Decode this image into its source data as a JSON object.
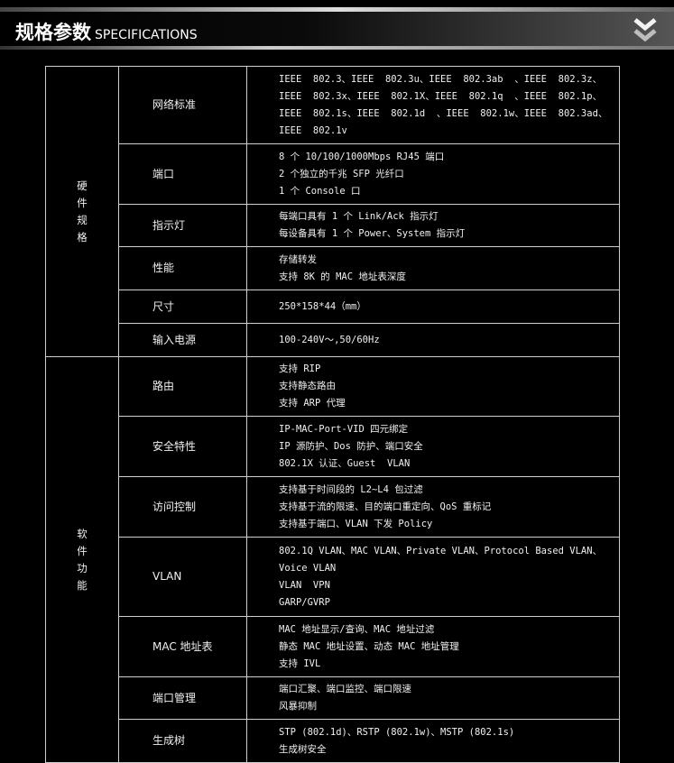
{
  "header": {
    "title_cn": "规格参数",
    "title_en": "SPECIFICATIONS",
    "icon": "double-chevron-down-icon"
  },
  "groups": [
    {
      "label": "硬\n件\n规\n格",
      "rows": [
        {
          "name": "网络标准",
          "lines": [
            "IEEE  802.3、IEEE  802.3u、IEEE  802.3ab  、IEEE  802.3z、",
            "IEEE  802.3x、IEEE  802.1X、IEEE  802.1q  、IEEE  802.1p、",
            "IEEE  802.1s、IEEE  802.1d  、IEEE  802.1w、IEEE  802.3ad、",
            "IEEE  802.1v"
          ]
        },
        {
          "name": "端口",
          "lines": [
            "8 个 10/100/1000Mbps RJ45 端口",
            "2 个独立的千兆 SFP 光纤口",
            "1 个 Console 口"
          ]
        },
        {
          "name": "指示灯",
          "lines": [
            "每端口具有 1 个 Link/Ack 指示灯",
            "每设备具有 1 个 Power、System 指示灯"
          ]
        },
        {
          "name": "性能",
          "lines": [
            "存储转发",
            "支持 8K 的 MAC 地址表深度"
          ]
        },
        {
          "name": "尺寸",
          "lines": [
            "250*158*44（mm）"
          ]
        },
        {
          "name": "输入电源",
          "lines": [
            "100-240V～,50/60Hz"
          ]
        }
      ]
    },
    {
      "label": "软\n件\n功\n能",
      "rows": [
        {
          "name": "路由",
          "lines": [
            "支持 RIP",
            "支持静态路由",
            "支持 ARP 代理"
          ]
        },
        {
          "name": "安全特性",
          "lines": [
            "IP-MAC-Port-VID 四元绑定",
            "IP 源防护、Dos 防护、端口安全",
            "802.1X 认证、Guest  VLAN"
          ]
        },
        {
          "name": "访问控制",
          "lines": [
            "支持基于时间段的 L2~L4 包过滤",
            "支持基于流的限速、目的端口重定向、QoS 重标记",
            "支持基于端口、VLAN 下发 Policy"
          ]
        },
        {
          "name": "VLAN",
          "lines": [
            "802.1Q VLAN、MAC VLAN、Private VLAN、Protocol Based VLAN、",
            "Voice VLAN",
            "VLAN  VPN",
            "GARP/GVRP"
          ]
        },
        {
          "name": "MAC 地址表",
          "lines": [
            "MAC 地址显示/查询、MAC 地址过滤",
            "静态 MAC 地址设置、动态 MAC 地址管理",
            "支持 IVL"
          ]
        },
        {
          "name": "端口管理",
          "lines": [
            "端口汇聚、端口监控、端口限速",
            "风暴抑制"
          ]
        },
        {
          "name": "生成树",
          "lines": [
            "STP (802.1d)、RSTP (802.1w)、MSTP (802.1s)",
            "生成树安全"
          ]
        }
      ]
    }
  ]
}
